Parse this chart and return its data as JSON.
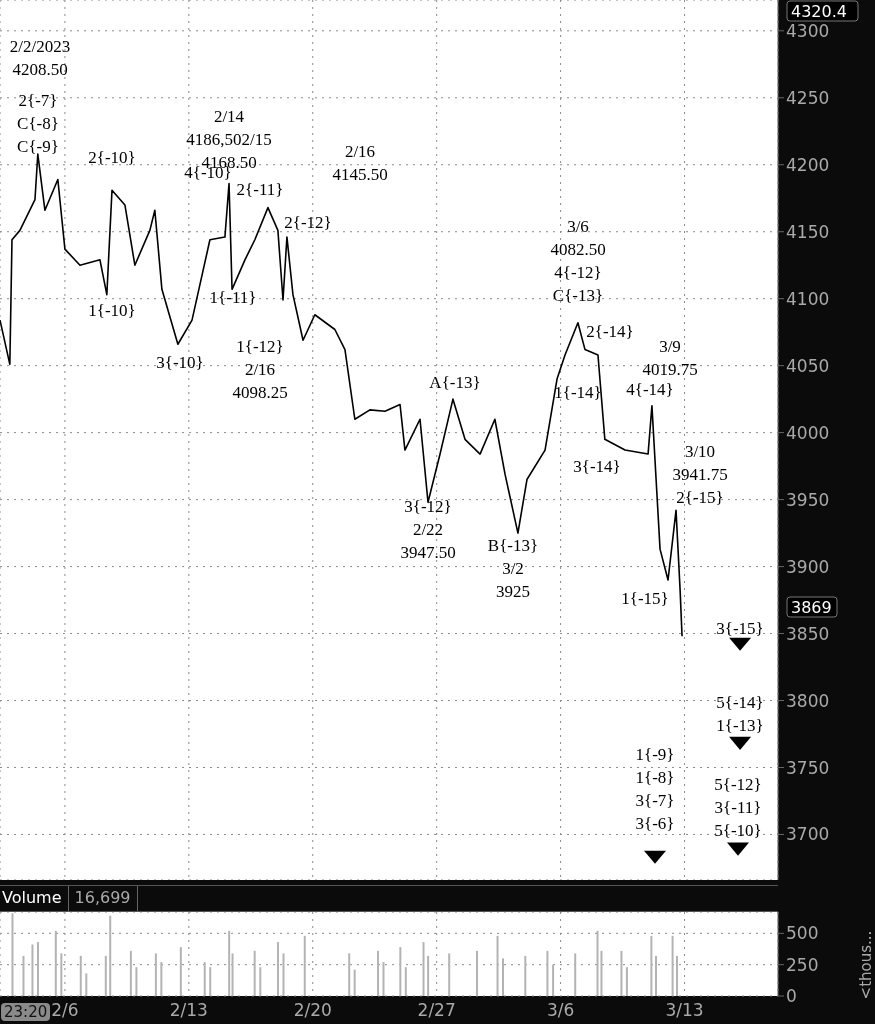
{
  "chart_data": [
    {
      "type": "line",
      "tick_labels": "y",
      "grid": true,
      "xlim": [
        "2023-02-02T08:00",
        "2023-03-18T06:45"
      ],
      "xticks": [
        {
          "value": "2023-02-06T00:00",
          "label": null
        },
        {
          "value": "2023-02-13T00:00",
          "label": null
        },
        {
          "value": "2023-02-20T00:00",
          "label": null
        },
        {
          "value": "2023-02-27T00:00",
          "label": null
        },
        {
          "value": "2023-03-06T00:00",
          "label": null
        },
        {
          "value": "2023-03-13T00:00",
          "label": null
        }
      ],
      "ylim": [
        3666,
        4323
      ],
      "yticks": [
        3700,
        3750,
        3800,
        3850,
        3900,
        3950,
        4000,
        4050,
        4100,
        4150,
        4200,
        4250,
        4300
      ],
      "series": [
        {
          "type": "line",
          "color": "#000000",
          "x": [
            "2023-02-02T08:00",
            "2023-02-02T21:20",
            "2023-02-03T00:15",
            "2023-02-03T11:00",
            "2023-02-04T07:25",
            "2023-02-04T11:15",
            "2023-02-04T20:55",
            "2023-02-05T14:25",
            "2023-02-06T00:00",
            "2023-02-06T20:25",
            "2023-02-07T23:30",
            "2023-02-08T08:50",
            "2023-02-08T15:50",
            "2023-02-09T09:20",
            "2023-02-09T22:50",
            "2023-02-10T19:10",
            "2023-02-11T01:55",
            "2023-02-11T11:30",
            "2023-02-12T09:10",
            "2023-02-13T04:20",
            "2023-02-14T04:35",
            "2023-02-15T00:55",
            "2023-02-15T06:30",
            "2023-02-15T10:35",
            "2023-02-16T04:05",
            "2023-02-16T17:30",
            "2023-02-17T11:15",
            "2023-02-18T00:45",
            "2023-02-18T07:40",
            "2023-02-18T13:00",
            "2023-02-18T21:10",
            "2023-02-19T10:50",
            "2023-02-20T02:50",
            "2023-02-21T06:00",
            "2023-02-21T19:40",
            "2023-02-22T09:05",
            "2023-02-23T05:30",
            "2023-02-24T01:55",
            "2023-02-24T22:20",
            "2023-02-25T05:00",
            "2023-02-26T01:25",
            "2023-02-26T12:15",
            "2023-02-27T04:35",
            "2023-02-27T22:05",
            "2023-02-28T14:25",
            "2023-03-01T10:50",
            "2023-03-02T06:55",
            "2023-03-02T20:40",
            "2023-03-03T14:10",
            "2023-03-04T02:25",
            "2023-03-05T02:55",
            "2023-03-05T19:10",
            "2023-03-06T06:00",
            "2023-03-06T23:30",
            "2023-03-07T09:05",
            "2023-03-08T02:40",
            "2023-03-08T12:00",
            "2023-03-09T15:20",
            "2023-03-10T22:35",
            "2023-03-11T03:50",
            "2023-03-11T14:50",
            "2023-03-12T01:40",
            "2023-03-12T12:30",
            "2023-03-12T18:00",
            "2023-03-12T20:40"
          ],
          "values": [
            4084,
            4051,
            4144,
            4151,
            4174,
            4208,
            4166,
            4189,
            4137,
            4125,
            4129,
            4103,
            4181,
            4170,
            4125,
            4151,
            4166,
            4107,
            4066,
            4084,
            4144,
            4146,
            4186,
            4107,
            4129,
            4144,
            4168,
            4151,
            4099,
            4146,
            4103,
            4069,
            4088,
            4077,
            4062,
            4010,
            4017,
            4016,
            4021,
            3987,
            4010,
            3948,
            3984,
            4025,
            3995,
            3984,
            4010,
            3969,
            3925,
            3965,
            3987,
            4040,
            4058,
            4082,
            4062,
            4058,
            3995,
            3987,
            3984,
            4020,
            3913,
            3890,
            3942,
            3883,
            3848
          ]
        },
        {
          "type": "scatter",
          "marker": "triangle",
          "color": "#000000",
          "x": [
            "2023-03-11T08:00",
            "2023-03-16T03:20",
            "2023-03-16T03:20",
            "2023-03-16T00:30"
          ],
          "values": [
            3683,
            3842,
            3768,
            3689
          ]
        }
      ],
      "annotations": [
        "2/2/2023\n4208.50",
        "2{-7}\nC{-8}\nC{-9}",
        "2{-10}",
        "1{-10}",
        "3{-10}",
        "2/14\n4186,502/15\n4168.50",
        "4{-10}",
        "2{-11}",
        "1{-11}",
        "2/16\n4145.50",
        "2{-12}",
        "1{-12}\n2/16\n4098.25",
        "3{-12}\n2/22\n3947.50",
        "A{-13}",
        "B{-13}\n3/2\n3925",
        "3/6\n4082.50\n4{-12}\nC{-13}",
        "2{-14}",
        "1{-14}",
        "3/9\n4019.75",
        "4{-14}",
        "3{-14}",
        "3/10\n3941.75\n2{-15}",
        "1{-15}",
        "3{-15}",
        "5{-14}\n1{-13}",
        "1{-9}\n1{-8}\n3{-7}\n3{-6}",
        "5{-12}\n3{-11}\n5{-10}",
        "4320.4",
        "3869"
      ]
    },
    {
      "type": "bar",
      "title": "Volume",
      "subtitle": "16,699",
      "ylabel": "<thous...",
      "grid": true,
      "color": "#b3b3b3",
      "xlim": [
        "2023-02-02T08:00",
        "2023-03-18T06:45"
      ],
      "xticks": [
        {
          "value": "2023-02-06T00:00",
          "label": "2/6"
        },
        {
          "value": "2023-02-13T00:00",
          "label": "2/13"
        },
        {
          "value": "2023-02-20T00:00",
          "label": "2/20"
        },
        {
          "value": "2023-02-27T00:00",
          "label": "2/27"
        },
        {
          "value": "2023-03-06T00:00",
          "label": "3/6"
        },
        {
          "value": "2023-03-13T00:00",
          "label": "3/13"
        }
      ],
      "ylim": [
        0,
        670
      ],
      "yticks": [
        0,
        250,
        500
      ],
      "x": [
        "2023-02-03T00:30",
        "2023-02-03T15:25",
        "2023-02-04T03:35",
        "2023-02-04T11:05",
        "2023-02-05T11:15",
        "2023-02-05T18:45",
        "2023-02-06T21:05",
        "2023-02-07T04:35",
        "2023-02-08T07:00",
        "2023-02-08T13:00",
        "2023-02-09T17:00",
        "2023-02-10T00:30",
        "2023-02-11T02:55",
        "2023-02-11T10:20",
        "2023-02-12T12:45",
        "2023-02-13T21:10",
        "2023-02-14T04:35",
        "2023-02-15T06:15",
        "2023-02-15T10:50",
        "2023-02-16T16:50",
        "2023-02-17T00:30",
        "2023-02-18T00:30",
        "2023-02-18T07:55",
        "2023-02-19T12:45",
        "2023-02-22T01:00",
        "2023-02-22T08:25",
        "2023-02-23T16:05",
        "2023-02-23T23:30",
        "2023-02-24T22:20",
        "2023-02-25T05:45",
        "2023-02-26T05:45",
        "2023-02-26T12:00",
        "2023-02-27T16:35",
        "2023-03-01T06:15",
        "2023-03-02T10:05",
        "2023-03-02T17:30",
        "2023-03-03T23:45",
        "2023-03-05T05:45",
        "2023-03-05T13:25",
        "2023-03-06T19:25",
        "2023-03-08T01:40",
        "2023-03-08T07:00",
        "2023-03-09T10:05",
        "2023-03-09T17:30",
        "2023-03-11T02:40",
        "2023-03-11T08:55",
        "2023-03-12T07:25",
        "2023-03-12T13:25"
      ],
      "values": [
        660,
        320,
        410,
        430,
        520,
        340,
        320,
        180,
        320,
        640,
        360,
        230,
        340,
        270,
        390,
        270,
        230,
        520,
        340,
        360,
        230,
        430,
        340,
        480,
        340,
        210,
        360,
        270,
        390,
        230,
        430,
        320,
        340,
        360,
        480,
        300,
        320,
        360,
        250,
        340,
        520,
        360,
        360,
        230,
        480,
        320,
        480,
        320
      ],
      "annotations": [
        "23:20"
      ]
    }
  ]
}
